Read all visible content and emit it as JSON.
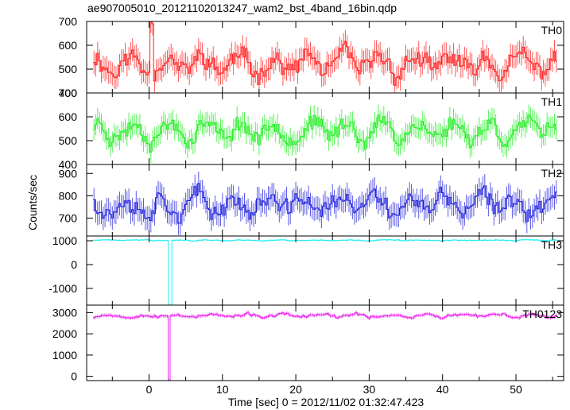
{
  "chart_data": {
    "type": "line",
    "title": "ae907005010_20121102013247_wam2_bst_4band_16bin.qdp",
    "xlabel": "Time [sec] 0 = 2012/11/02 01:32:47.423",
    "ylabel": "Counts/sec",
    "xlim": [
      -8.5,
      56.5
    ],
    "x_ticks": [
      0,
      10,
      20,
      30,
      40,
      50
    ],
    "grid": false,
    "legend": "none",
    "panels": [
      {
        "name": "TH0",
        "color": "#ff2020",
        "ylim": [
          400,
          700
        ],
        "y_ticks": [
          400,
          500,
          600,
          700
        ],
        "series": {
          "t_start": -7.5,
          "t_end": 55.5,
          "step": 0.25,
          "base": 520,
          "amp": 55,
          "noise": 45,
          "seed": 11,
          "spikes": [
            {
              "t": 0.2,
              "value": 700
            },
            {
              "t": 0.5,
              "value": 690
            }
          ]
        }
      },
      {
        "name": "TH1",
        "color": "#22ee22",
        "ylim": [
          400,
          700
        ],
        "y_ticks": [
          400,
          500,
          600,
          700
        ],
        "series": {
          "t_start": -7.5,
          "t_end": 55.5,
          "step": 0.25,
          "base": 545,
          "amp": 50,
          "noise": 40,
          "seed": 23,
          "spikes": []
        }
      },
      {
        "name": "TH2",
        "color": "#2222dd",
        "ylim": [
          620,
          940
        ],
        "y_ticks": [
          700,
          800,
          900
        ],
        "series": {
          "t_start": -7.5,
          "t_end": 55.5,
          "step": 0.25,
          "base": 760,
          "amp": 55,
          "noise": 50,
          "seed": 37,
          "spikes": []
        }
      },
      {
        "name": "TH3",
        "color": "#22eeee",
        "ylim": [
          -1700,
          1200
        ],
        "y_ticks": [
          -1000,
          0,
          1000
        ],
        "series": {
          "t_start": -7.5,
          "t_end": 55.5,
          "step": 0.25,
          "base": 1020,
          "amp": 25,
          "noise": 25,
          "seed": 41,
          "dips": [
            {
              "t": 2.75,
              "value": -1700
            },
            {
              "t": 3.0,
              "value": -1700
            }
          ]
        }
      },
      {
        "name": "TH0123",
        "color": "#ee22ee",
        "ylim": [
          -200,
          3350
        ],
        "y_ticks": [
          0,
          1000,
          2000,
          3000
        ],
        "series": {
          "t_start": -7.5,
          "t_end": 55.5,
          "step": 0.25,
          "base": 2850,
          "amp": 90,
          "noise": 80,
          "seed": 53,
          "dips": [
            {
              "t": 2.75,
              "value": -200
            }
          ]
        }
      }
    ]
  }
}
